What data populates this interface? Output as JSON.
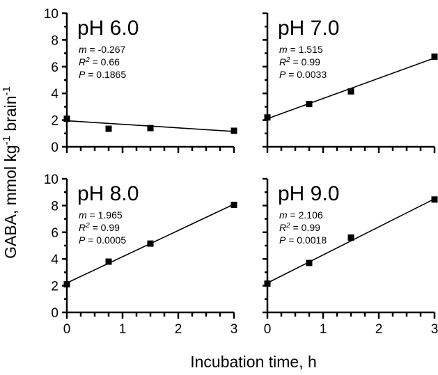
{
  "chart_data": [
    {
      "type": "scatter",
      "title": "pH 6.0",
      "stats": {
        "m_label": "m",
        "m": "-0.267",
        "r2_label": "R",
        "r2_sup": "2",
        "r2": "0.66",
        "p_label": "P",
        "p": "0.1865"
      },
      "x": [
        0,
        0.75,
        1.5,
        3
      ],
      "y": [
        2.1,
        1.35,
        1.4,
        1.2
      ],
      "fit": {
        "x": [
          0,
          3
        ],
        "y": [
          1.95,
          1.15
        ]
      },
      "xlim": [
        0,
        3
      ],
      "ylim": [
        0,
        10
      ],
      "yticks": [
        0,
        2,
        4,
        6,
        8,
        10
      ],
      "xticks": [],
      "xlabel": "",
      "ylabel": ""
    },
    {
      "type": "scatter",
      "title": "pH 7.0",
      "stats": {
        "m_label": "m",
        "m": "1.515",
        "r2_label": "R",
        "r2_sup": "2",
        "r2": "0.99",
        "p_label": "P",
        "p": "0.0033"
      },
      "x": [
        0,
        0.75,
        1.5,
        3
      ],
      "y": [
        2.2,
        3.2,
        4.15,
        6.75
      ],
      "fit": {
        "x": [
          0,
          3
        ],
        "y": [
          2.1,
          6.65
        ]
      },
      "xlim": [
        0,
        3
      ],
      "ylim": [
        0,
        10
      ],
      "yticks": [],
      "xticks": [],
      "xlabel": "",
      "ylabel": ""
    },
    {
      "type": "scatter",
      "title": "pH 8.0",
      "stats": {
        "m_label": "m",
        "m": "1.965",
        "r2_label": "R",
        "r2_sup": "2",
        "r2": "0.99",
        "p_label": "P",
        "p": "0.0005"
      },
      "x": [
        0,
        0.75,
        1.5,
        3
      ],
      "y": [
        2.1,
        3.8,
        5.15,
        8.05
      ],
      "fit": {
        "x": [
          0,
          3
        ],
        "y": [
          2.2,
          8.1
        ]
      },
      "xlim": [
        0,
        3
      ],
      "ylim": [
        0,
        10
      ],
      "yticks": [
        0,
        2,
        4,
        6,
        8,
        10
      ],
      "xticks": [
        0,
        1,
        2,
        3
      ],
      "xlabel": "",
      "ylabel": ""
    },
    {
      "type": "scatter",
      "title": "pH 9.0",
      "stats": {
        "m_label": "m",
        "m": "2.106",
        "r2_label": "R",
        "r2_sup": "2",
        "r2": "0.99",
        "p_label": "P",
        "p": "0.0018"
      },
      "x": [
        0,
        0.75,
        1.5,
        3
      ],
      "y": [
        2.15,
        3.7,
        5.6,
        8.45
      ],
      "fit": {
        "x": [
          0,
          3
        ],
        "y": [
          2.2,
          8.5
        ]
      },
      "xlim": [
        0,
        3
      ],
      "ylim": [
        0,
        10
      ],
      "yticks": [],
      "xticks": [
        0,
        1,
        2,
        3
      ],
      "xlabel": "",
      "ylabel": ""
    }
  ],
  "axes_titles": {
    "x": "Incubation time, h",
    "y": {
      "prefix": "GABA, mmol kg",
      "sup1": "-1",
      "mid": " brain",
      "sup2": "-1"
    }
  }
}
